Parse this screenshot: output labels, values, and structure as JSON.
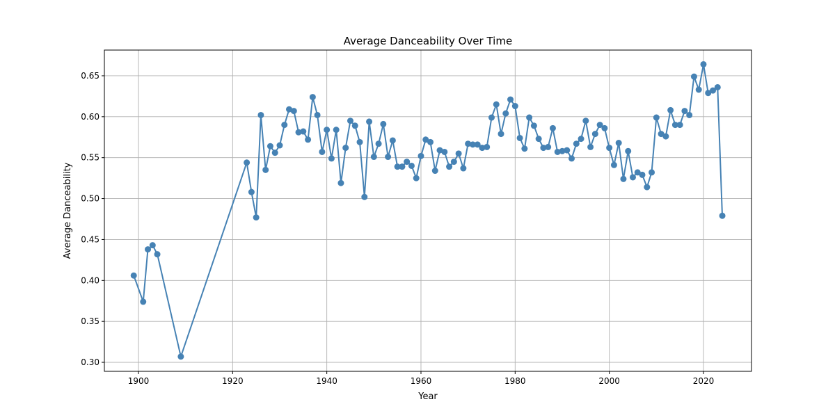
{
  "chart_data": {
    "type": "line",
    "title": "Average Danceability Over Time",
    "xlabel": "Year",
    "ylabel": "Average Danceability",
    "xlim": [
      1892.76,
      2030.2
    ],
    "ylim": [
      0.289,
      0.6814
    ],
    "xticks": [
      1900,
      1920,
      1940,
      1960,
      1980,
      2000,
      2020
    ],
    "yticks": [
      0.3,
      0.35,
      0.4,
      0.45,
      0.5,
      0.55,
      0.6,
      0.65
    ],
    "xtick_labels": [
      "1900",
      "1920",
      "1940",
      "1960",
      "1980",
      "2000",
      "2020"
    ],
    "ytick_labels": [
      "0.30",
      "0.35",
      "0.40",
      "0.45",
      "0.50",
      "0.55",
      "0.60",
      "0.65"
    ],
    "grid": true,
    "color": "#4682b4",
    "marker": "circle",
    "x": [
      1899,
      1901,
      1902,
      1903,
      1904,
      1909,
      1923,
      1924,
      1925,
      1926,
      1927,
      1928,
      1929,
      1930,
      1931,
      1932,
      1933,
      1934,
      1935,
      1936,
      1937,
      1938,
      1939,
      1940,
      1941,
      1942,
      1943,
      1944,
      1945,
      1946,
      1947,
      1948,
      1949,
      1950,
      1951,
      1952,
      1953,
      1954,
      1955,
      1956,
      1957,
      1958,
      1959,
      1960,
      1961,
      1962,
      1963,
      1964,
      1965,
      1966,
      1967,
      1968,
      1969,
      1970,
      1971,
      1972,
      1973,
      1974,
      1975,
      1976,
      1977,
      1978,
      1979,
      1980,
      1981,
      1982,
      1983,
      1984,
      1985,
      1986,
      1987,
      1988,
      1989,
      1990,
      1991,
      1992,
      1993,
      1994,
      1995,
      1996,
      1997,
      1998,
      1999,
      2000,
      2001,
      2002,
      2003,
      2004,
      2005,
      2006,
      2007,
      2008,
      2009,
      2010,
      2011,
      2012,
      2013,
      2014,
      2015,
      2016,
      2017,
      2018,
      2019,
      2020,
      2021,
      2022,
      2023,
      2024
    ],
    "y": [
      0.406,
      0.374,
      0.438,
      0.443,
      0.432,
      0.307,
      0.544,
      0.508,
      0.477,
      0.602,
      0.535,
      0.564,
      0.556,
      0.565,
      0.59,
      0.609,
      0.607,
      0.581,
      0.582,
      0.572,
      0.624,
      0.602,
      0.557,
      0.584,
      0.549,
      0.584,
      0.519,
      0.562,
      0.595,
      0.589,
      0.569,
      0.502,
      0.594,
      0.551,
      0.567,
      0.591,
      0.551,
      0.571,
      0.539,
      0.539,
      0.545,
      0.54,
      0.525,
      0.552,
      0.572,
      0.569,
      0.534,
      0.559,
      0.557,
      0.539,
      0.545,
      0.555,
      0.537,
      0.567,
      0.566,
      0.566,
      0.562,
      0.563,
      0.599,
      0.615,
      0.579,
      0.604,
      0.621,
      0.613,
      0.574,
      0.561,
      0.599,
      0.589,
      0.573,
      0.562,
      0.563,
      0.586,
      0.557,
      0.558,
      0.559,
      0.549,
      0.567,
      0.573,
      0.595,
      0.563,
      0.579,
      0.59,
      0.586,
      0.562,
      0.541,
      0.568,
      0.524,
      0.558,
      0.526,
      0.532,
      0.529,
      0.514,
      0.532,
      0.599,
      0.579,
      0.576,
      0.608,
      0.59,
      0.59,
      0.607,
      0.602,
      0.649,
      0.633,
      0.664,
      0.629,
      0.632,
      0.636,
      0.479
    ]
  }
}
